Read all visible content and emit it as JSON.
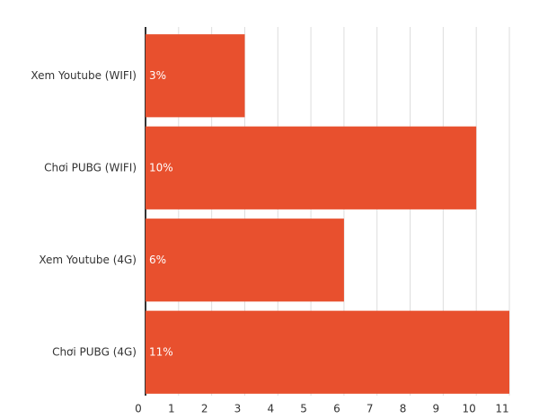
{
  "chart_data": {
    "type": "bar",
    "orientation": "horizontal",
    "categories": [
      "Xem Youtube (WIFI)",
      "Chơi PUBG (WIFI)",
      "Xem Youtube (4G)",
      "Chơi PUBG (4G)"
    ],
    "values": [
      3,
      10,
      6,
      11
    ],
    "value_labels": [
      "3%",
      "10%",
      "6%",
      "11%"
    ],
    "color": "#e8502e",
    "xlim": [
      0,
      11
    ],
    "xticks": [
      0,
      1,
      2,
      3,
      4,
      5,
      6,
      7,
      8,
      9,
      10,
      11
    ],
    "grid": true
  }
}
